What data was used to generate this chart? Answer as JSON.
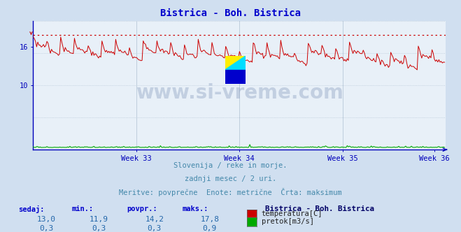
{
  "title": "Bistrica - Boh. Bistrica",
  "title_color": "#0000cc",
  "background_color": "#d0dff0",
  "plot_bg_color": "#e8f0f8",
  "grid_color": "#b8c8d8",
  "axis_color": "#0000bb",
  "temp_color": "#cc0000",
  "flow_color": "#00aa00",
  "max_line_color": "#cc0000",
  "watermark_text": "www.si-vreme.com",
  "watermark_color": "#1a3a7a",
  "watermark_alpha": 0.18,
  "subtitle_lines": [
    "Slovenija / reke in morje.",
    "zadnji mesec / 2 uri.",
    "Meritve: povprečne  Enote: metrične  Črta: maksimum"
  ],
  "subtitle_color": "#4488aa",
  "x_tick_labels": [
    "Week 33",
    "Week 34",
    "Week 35",
    "Week 36"
  ],
  "ylim": [
    0,
    20
  ],
  "xlim_max": 360,
  "temp_min": 11.9,
  "temp_max": 17.8,
  "temp_avg": 14.2,
  "temp_now": 13.0,
  "flow_min": 0.3,
  "flow_max": 0.9,
  "flow_avg": 0.3,
  "flow_now": 0.3,
  "table_headers": [
    "sedaj:",
    "min.:",
    "povpr.:",
    "maks.:"
  ],
  "table_header_color": "#0000cc",
  "table_value_color": "#2266aa",
  "legend_title": "Bistrica - Boh. Bistrica",
  "legend_title_color": "#000066",
  "legend_temp_label": "temperatura[C]",
  "legend_flow_label": "pretok[m3/s]"
}
